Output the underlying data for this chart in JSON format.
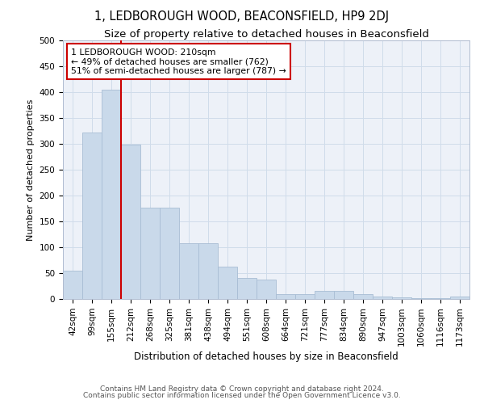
{
  "title": "1, LEDBOROUGH WOOD, BEACONSFIELD, HP9 2DJ",
  "subtitle": "Size of property relative to detached houses in Beaconsfield",
  "xlabel": "Distribution of detached houses by size in Beaconsfield",
  "ylabel": "Number of detached properties",
  "categories": [
    "42sqm",
    "99sqm",
    "155sqm",
    "212sqm",
    "268sqm",
    "325sqm",
    "381sqm",
    "438sqm",
    "494sqm",
    "551sqm",
    "608sqm",
    "664sqm",
    "721sqm",
    "777sqm",
    "834sqm",
    "890sqm",
    "947sqm",
    "1003sqm",
    "1060sqm",
    "1116sqm",
    "1173sqm"
  ],
  "values": [
    54,
    322,
    404,
    298,
    176,
    176,
    108,
    108,
    63,
    40,
    37,
    10,
    10,
    15,
    15,
    9,
    5,
    3,
    1,
    1,
    5
  ],
  "bar_color": "#c9d9ea",
  "bar_edge_color": "#a8bdd4",
  "grid_color": "#d0dcea",
  "background_color": "#edf1f8",
  "annotation_text": "1 LEDBOROUGH WOOD: 210sqm\n← 49% of detached houses are smaller (762)\n51% of semi-detached houses are larger (787) →",
  "vline_x_index": 3,
  "vline_color": "#cc0000",
  "annotation_box_edge_color": "#cc0000",
  "footer_line1": "Contains HM Land Registry data © Crown copyright and database right 2024.",
  "footer_line2": "Contains public sector information licensed under the Open Government Licence v3.0.",
  "ylim": [
    0,
    500
  ],
  "yticks": [
    0,
    50,
    100,
    150,
    200,
    250,
    300,
    350,
    400,
    450,
    500
  ],
  "title_fontsize": 10.5,
  "subtitle_fontsize": 9.5,
  "xlabel_fontsize": 8.5,
  "ylabel_fontsize": 8,
  "tick_fontsize": 7.5,
  "footer_fontsize": 6.5
}
